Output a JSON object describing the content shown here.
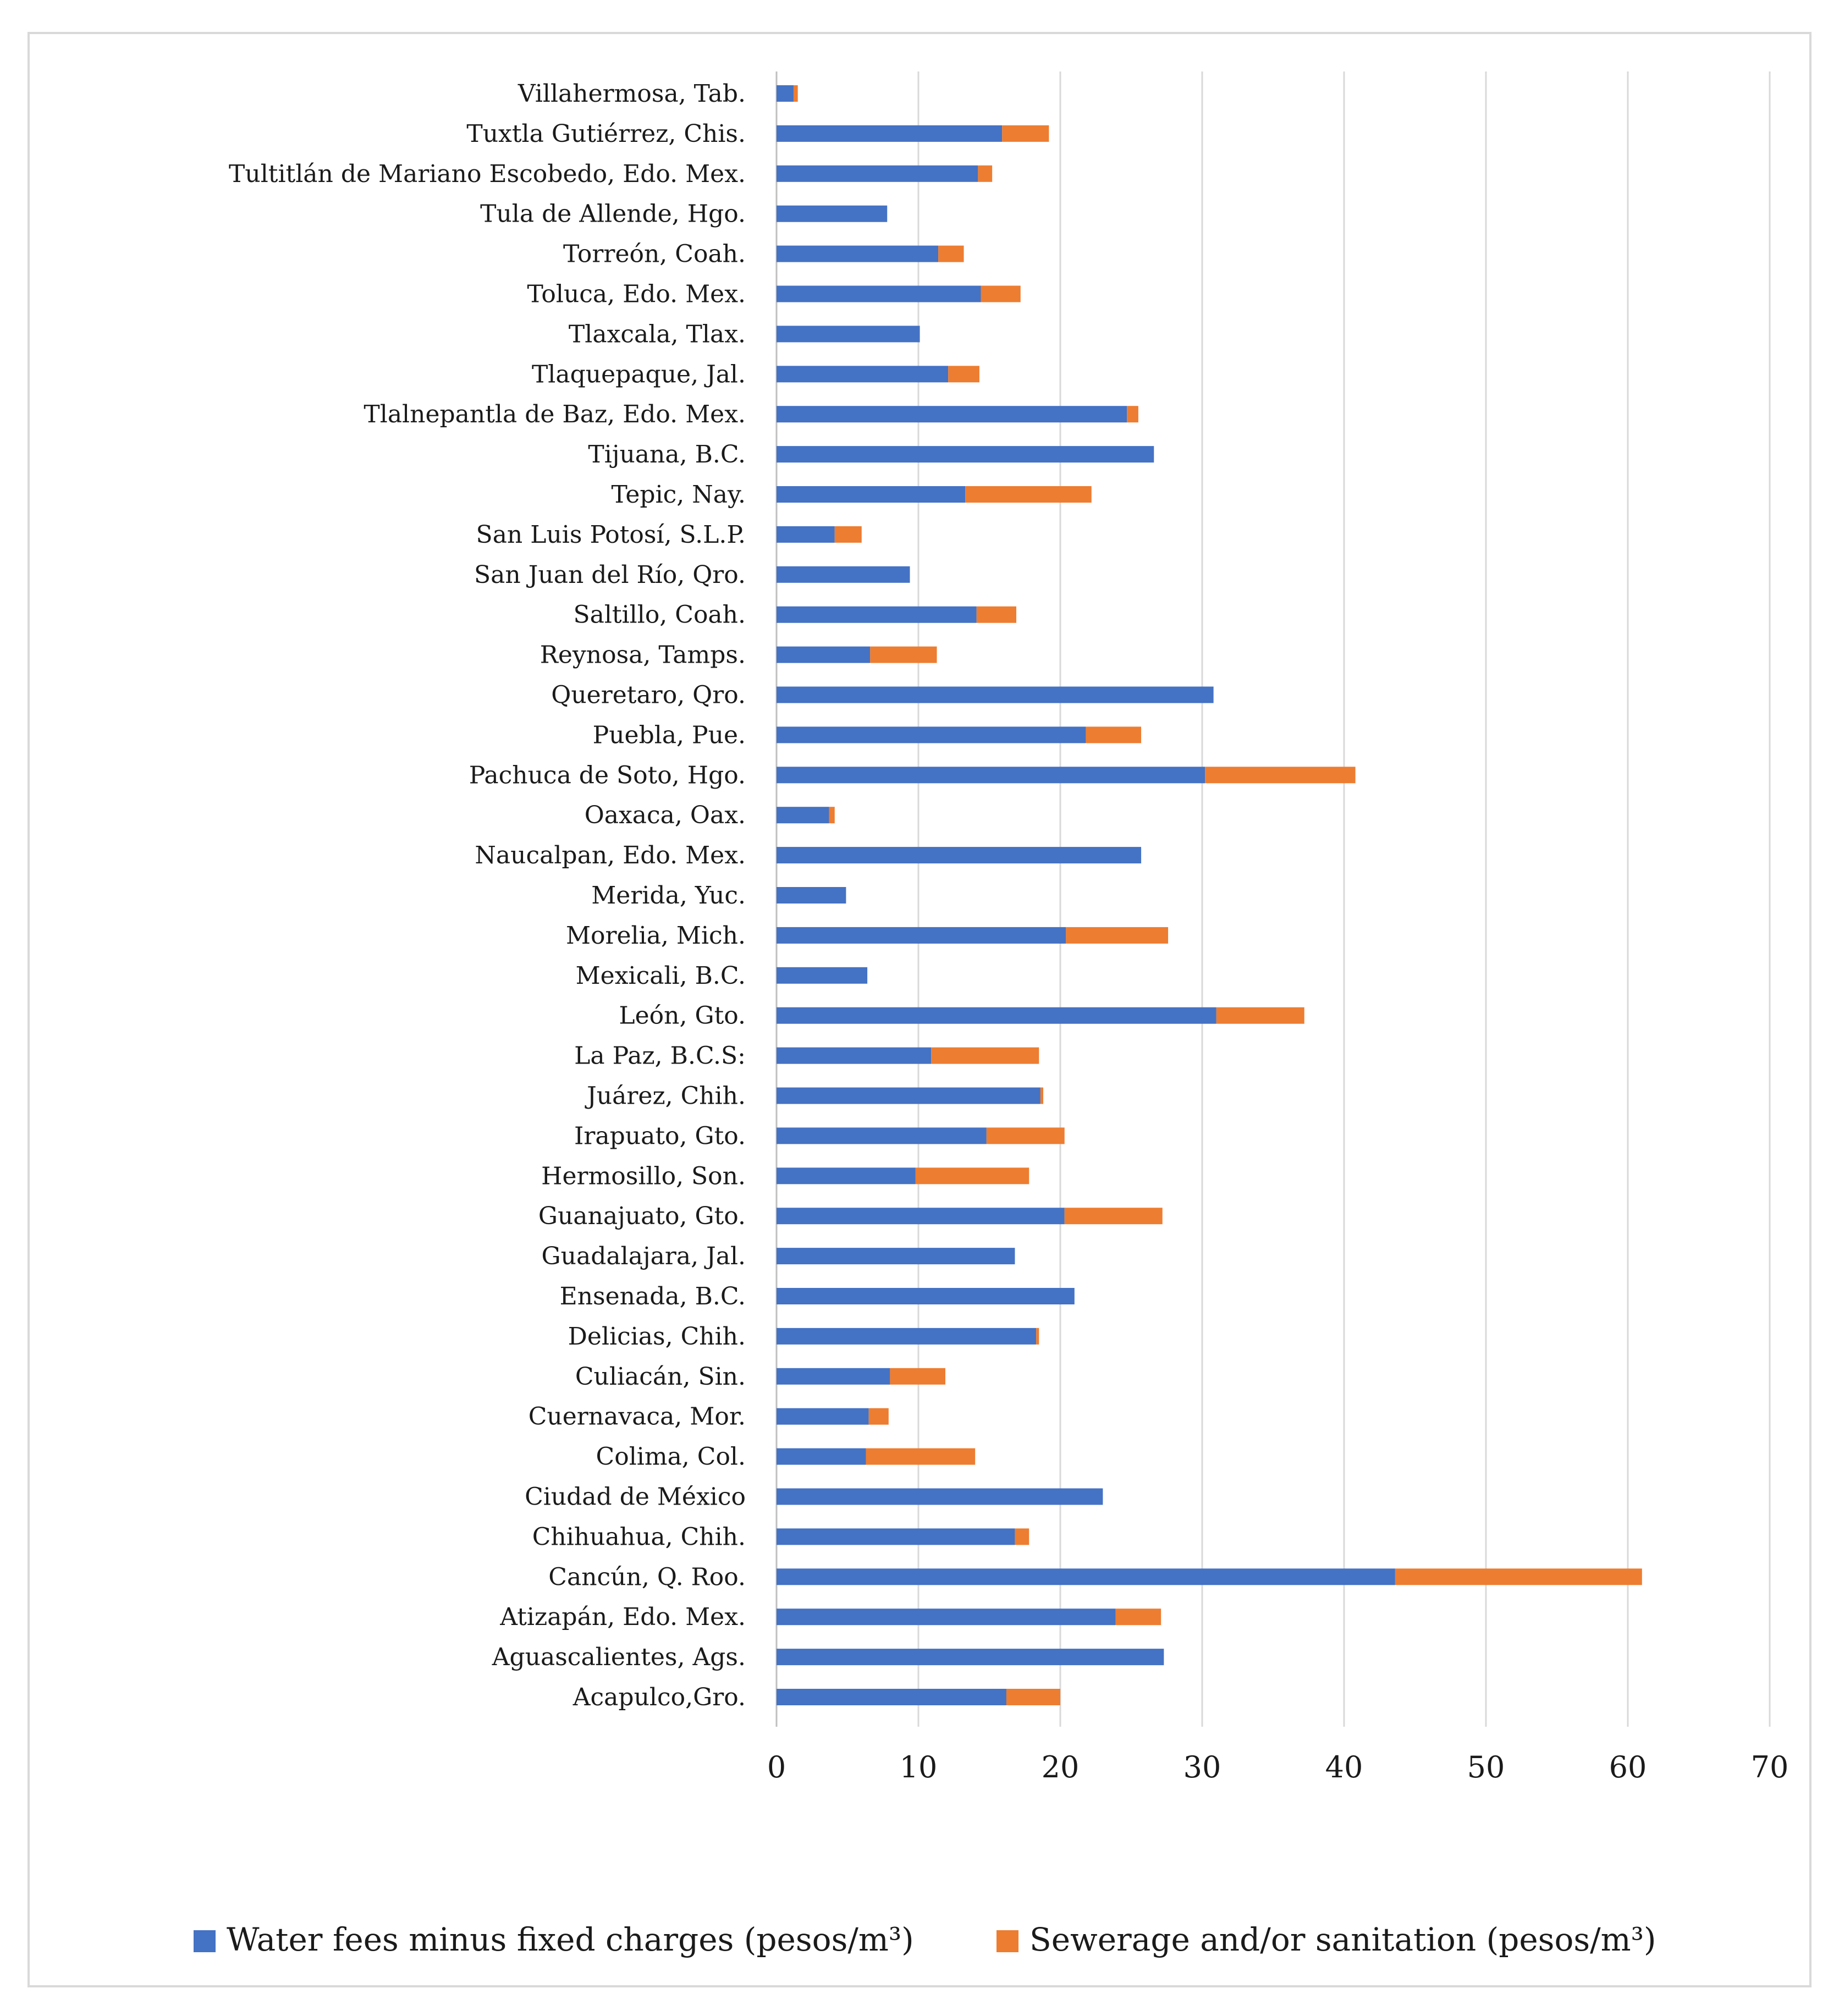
{
  "chart_data": {
    "type": "bar",
    "orientation": "horizontal",
    "stacked": true,
    "xlim": [
      0,
      70
    ],
    "xticks": [
      0,
      10,
      20,
      30,
      40,
      50,
      60,
      70
    ],
    "xtick_labels": [
      "0",
      "10",
      "20",
      "30",
      "40",
      "50",
      "60",
      "70"
    ],
    "grid": true,
    "legend_position": "bottom",
    "colors": {
      "water": "#4472c4",
      "sewer": "#ed7d31",
      "grid": "#d9d9d9",
      "axis": "#bfbfbf"
    },
    "categories": [
      "Villahermosa, Tab.",
      "Tuxtla Gutiérrez, Chis.",
      "Tultitlán de Mariano Escobedo, Edo. Mex.",
      "Tula de Allende, Hgo.",
      "Torreón, Coah.",
      "Toluca, Edo. Mex.",
      "Tlaxcala, Tlax.",
      "Tlaquepaque, Jal.",
      "Tlalnepantla de Baz, Edo. Mex.",
      "Tijuana, B.C.",
      "Tepic, Nay.",
      "San Luis Potosí, S.L.P.",
      "San Juan del Río, Qro.",
      "Saltillo, Coah.",
      "Reynosa, Tamps.",
      "Queretaro, Qro.",
      "Puebla, Pue.",
      "Pachuca de Soto, Hgo.",
      "Oaxaca, Oax.",
      "Naucalpan, Edo. Mex.",
      "Merida, Yuc.",
      "Morelia, Mich.",
      "Mexicali, B.C.",
      "León, Gto.",
      "La Paz, B.C.S:",
      "Juárez, Chih.",
      "Irapuato, Gto.",
      "Hermosillo, Son.",
      "Guanajuato, Gto.",
      "Guadalajara, Jal.",
      "Ensenada, B.C.",
      "Delicias, Chih.",
      "Culiacán, Sin.",
      "Cuernavaca, Mor.",
      "Colima, Col.",
      "Ciudad de México",
      "Chihuahua, Chih.",
      "Cancún, Q. Roo.",
      "Atizapán, Edo. Mex.",
      "Aguascalientes, Ags.",
      "Acapulco,Gro."
    ],
    "series": [
      {
        "name": "Water fees minus fixed charges (pesos/m³)",
        "values": [
          1.2,
          15.9,
          14.2,
          7.8,
          11.4,
          14.4,
          10.1,
          12.1,
          24.7,
          26.6,
          13.3,
          4.1,
          9.4,
          14.1,
          6.6,
          30.8,
          21.8,
          30.2,
          3.7,
          25.7,
          4.9,
          20.4,
          6.4,
          31.0,
          10.9,
          18.6,
          14.8,
          9.8,
          20.3,
          16.8,
          21.0,
          18.3,
          8.0,
          6.5,
          6.3,
          23.0,
          16.8,
          43.6,
          23.9,
          27.3,
          16.2
        ],
        "color": "#4472c4"
      },
      {
        "name": "Sewerage and/or sanitation (pesos/m³)",
        "values": [
          0.3,
          3.3,
          1.0,
          0.0,
          1.8,
          2.8,
          0.0,
          2.2,
          0.8,
          0.0,
          8.9,
          1.9,
          0.0,
          2.8,
          4.7,
          0.0,
          3.9,
          10.6,
          0.4,
          0.0,
          0.0,
          7.2,
          0.0,
          6.2,
          7.6,
          0.2,
          5.5,
          8.0,
          6.9,
          0.0,
          0.0,
          0.2,
          3.9,
          1.4,
          7.7,
          0.0,
          1.0,
          17.4,
          3.2,
          0.0,
          3.8
        ],
        "color": "#ed7d31"
      }
    ],
    "legend": [
      "Water fees minus fixed charges (pesos/m³)",
      "Sewerage and/or sanitation (pesos/m³)"
    ]
  }
}
